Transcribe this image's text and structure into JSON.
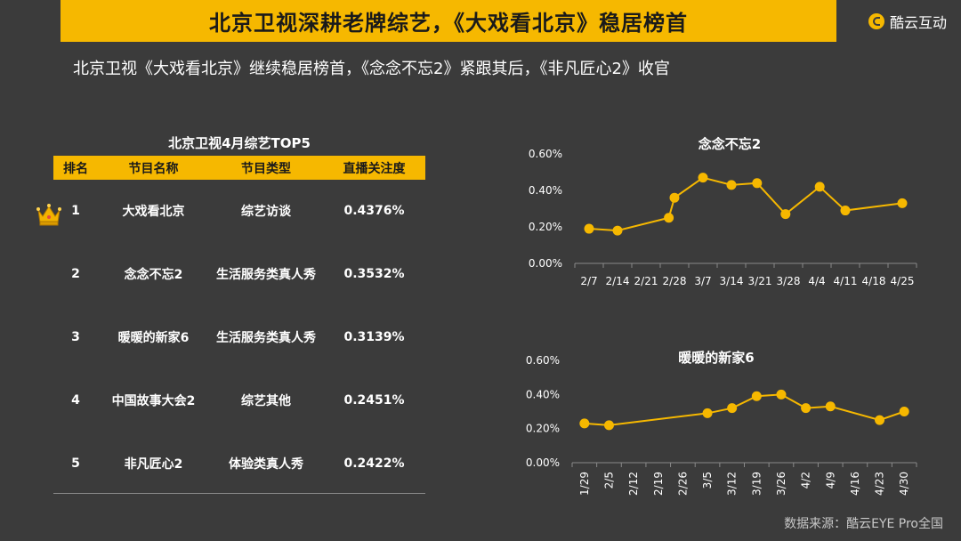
{
  "header": {
    "title": "北京卫视深耕老牌综艺，《大戏看北京》稳居榜首",
    "brand": "酷云互动"
  },
  "subtitle": "北京卫视《大戏看北京》继续稳居榜首，《念念不忘2》紧跟其后，《非凡匠心2》收官",
  "table": {
    "title": "北京卫视4月综艺TOP5",
    "headers": [
      "排名",
      "节目名称",
      "节目类型",
      "直播关注度"
    ],
    "rows": [
      {
        "rank": "1",
        "name": "大戏看北京",
        "type": "综艺访谈",
        "attention": "0.4376%"
      },
      {
        "rank": "2",
        "name": "念念不忘2",
        "type": "生活服务类真人秀",
        "attention": "0.3532%"
      },
      {
        "rank": "3",
        "name": "暖暖的新家6",
        "type": "生活服务类真人秀",
        "attention": "0.3139%"
      },
      {
        "rank": "4",
        "name": "中国故事大会2",
        "type": "综艺其他",
        "attention": "0.2451%"
      },
      {
        "rank": "5",
        "name": "非凡匠心2",
        "type": "体验类真人秀",
        "attention": "0.2422%"
      }
    ]
  },
  "colors": {
    "accent": "#f6b800",
    "background": "#3b3b3b",
    "axis": "#8a8a8a"
  },
  "chart_data": [
    {
      "type": "line",
      "title": "念念不忘2",
      "categories": [
        "2/7",
        "2/14",
        "2/21",
        "2/28",
        "3/7",
        "3/14",
        "3/21",
        "3/28",
        "4/4",
        "4/11",
        "4/18",
        "4/25"
      ],
      "y_ticks": [
        "0.00%",
        "0.20%",
        "0.40%",
        "0.60%"
      ],
      "ylim": [
        0,
        0.6
      ],
      "points": [
        {
          "x": 0.0,
          "y": 0.19
        },
        {
          "x": 1.0,
          "y": 0.18
        },
        {
          "x": 2.8,
          "y": 0.25
        },
        {
          "x": 3.0,
          "y": 0.36
        },
        {
          "x": 4.0,
          "y": 0.47
        },
        {
          "x": 5.0,
          "y": 0.43
        },
        {
          "x": 5.9,
          "y": 0.44
        },
        {
          "x": 6.9,
          "y": 0.27
        },
        {
          "x": 8.1,
          "y": 0.42
        },
        {
          "x": 9.0,
          "y": 0.29
        },
        {
          "x": 11.0,
          "y": 0.33
        }
      ]
    },
    {
      "type": "line",
      "title": "暖暖的新家6",
      "categories": [
        "1/29",
        "2/5",
        "2/12",
        "2/19",
        "2/26",
        "3/5",
        "3/12",
        "3/19",
        "3/26",
        "4/2",
        "4/9",
        "4/16",
        "4/23",
        "4/30"
      ],
      "y_ticks": [
        "0.00%",
        "0.20%",
        "0.40%",
        "0.60%"
      ],
      "ylim": [
        0,
        0.6
      ],
      "points": [
        {
          "x": 0.0,
          "y": 0.23
        },
        {
          "x": 1.0,
          "y": 0.22
        },
        {
          "x": 5.0,
          "y": 0.29
        },
        {
          "x": 6.0,
          "y": 0.32
        },
        {
          "x": 7.0,
          "y": 0.39
        },
        {
          "x": 8.0,
          "y": 0.4
        },
        {
          "x": 9.0,
          "y": 0.32
        },
        {
          "x": 10.0,
          "y": 0.33
        },
        {
          "x": 12.0,
          "y": 0.25
        },
        {
          "x": 13.0,
          "y": 0.3
        }
      ]
    }
  ],
  "footer": {
    "source": "数据来源：酷云EYE Pro全国"
  }
}
